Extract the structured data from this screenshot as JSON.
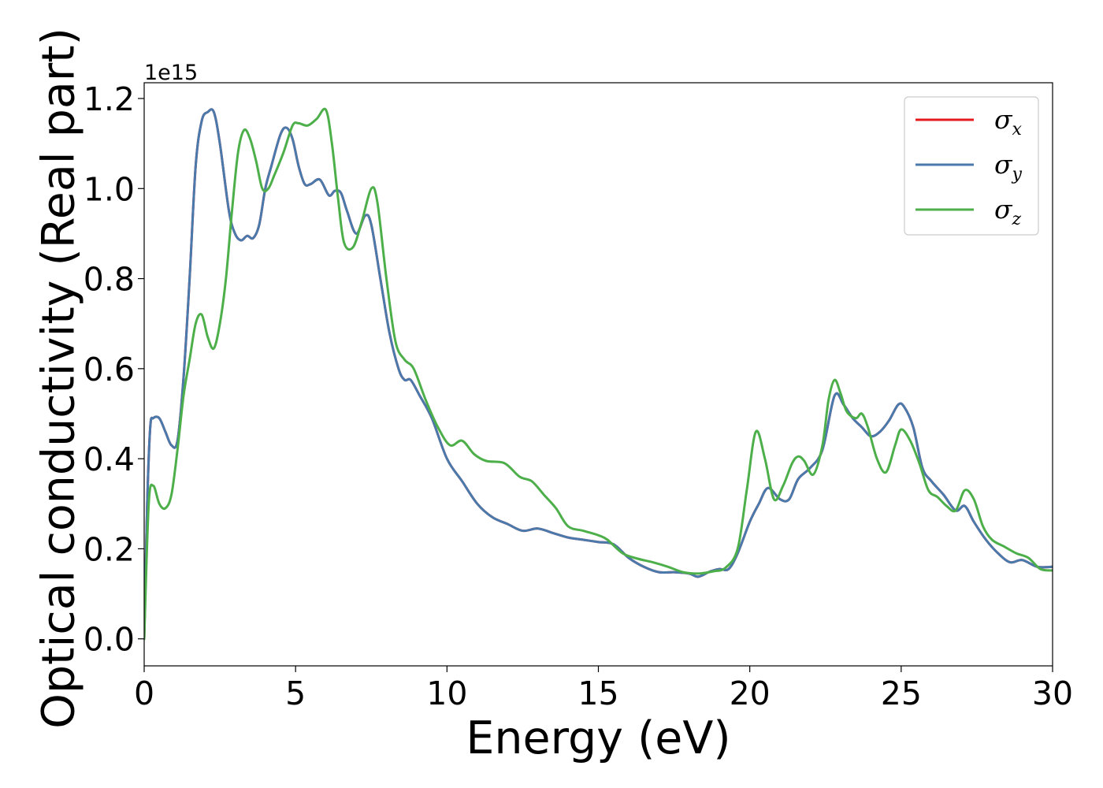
{
  "chart_data": {
    "type": "line",
    "xlabel": "Energy (eV)",
    "ylabel": "Optical conductivity (Real part)",
    "offset_text": "1e15",
    "xlim": [
      0,
      30
    ],
    "ylim": [
      -0.06,
      1.235
    ],
    "y_scale_factor": 1000000000000000.0,
    "grid": false,
    "legend_position": "top-right",
    "xticks": [
      0,
      5,
      10,
      15,
      20,
      25,
      30
    ],
    "xtick_labels": [
      "0",
      "5",
      "10",
      "15",
      "20",
      "25",
      "30"
    ],
    "yticks": [
      0.0,
      0.2,
      0.4,
      0.6,
      0.8,
      1.0,
      1.2
    ],
    "ytick_labels": [
      "0.0",
      "0.2",
      "0.4",
      "0.6",
      "0.8",
      "1.0",
      "1.2"
    ],
    "series": [
      {
        "name": "σx",
        "symbol": "σ",
        "subscript": "x",
        "color": "#e41a1c",
        "x": [
          0,
          0.1,
          0.2,
          0.3,
          0.5,
          0.7,
          0.9,
          1.1,
          1.3,
          1.5,
          1.7,
          1.9,
          2.1,
          2.3,
          2.5,
          2.8,
          3.0,
          3.2,
          3.4,
          3.6,
          3.8,
          4.0,
          4.2,
          4.5,
          4.7,
          4.9,
          5.1,
          5.3,
          5.5,
          5.8,
          6.1,
          6.3,
          6.5,
          6.7,
          7.0,
          7.3,
          7.5,
          7.8,
          8.1,
          8.4,
          8.6,
          8.8,
          9.1,
          9.5,
          10.0,
          10.5,
          11.0,
          11.5,
          12.0,
          12.5,
          13.0,
          13.5,
          14.0,
          14.5,
          15.0,
          15.5,
          16.0,
          16.5,
          17.0,
          17.5,
          18.0,
          18.3,
          18.7,
          19.0,
          19.3,
          19.6,
          20.0,
          20.3,
          20.6,
          21.0,
          21.3,
          21.6,
          22.0,
          22.4,
          22.8,
          23.1,
          23.4,
          23.7,
          24.0,
          24.3,
          24.6,
          24.9,
          25.1,
          25.4,
          25.7,
          26.0,
          26.4,
          26.8,
          27.1,
          27.4,
          27.8,
          28.2,
          28.6,
          29.0,
          29.5,
          30.0
        ],
        "values": [
          0.0,
          0.3,
          0.47,
          0.49,
          0.49,
          0.46,
          0.43,
          0.44,
          0.58,
          0.8,
          1.05,
          1.15,
          1.17,
          1.17,
          1.1,
          0.95,
          0.9,
          0.885,
          0.895,
          0.89,
          0.92,
          1.0,
          1.05,
          1.12,
          1.135,
          1.11,
          1.05,
          1.01,
          1.01,
          1.02,
          0.985,
          0.995,
          0.99,
          0.95,
          0.9,
          0.94,
          0.92,
          0.8,
          0.68,
          0.6,
          0.575,
          0.575,
          0.54,
          0.49,
          0.4,
          0.35,
          0.3,
          0.27,
          0.255,
          0.24,
          0.245,
          0.235,
          0.225,
          0.22,
          0.215,
          0.21,
          0.18,
          0.16,
          0.148,
          0.148,
          0.145,
          0.138,
          0.15,
          0.155,
          0.155,
          0.19,
          0.26,
          0.3,
          0.335,
          0.31,
          0.31,
          0.355,
          0.38,
          0.42,
          0.54,
          0.52,
          0.49,
          0.47,
          0.45,
          0.46,
          0.485,
          0.52,
          0.515,
          0.47,
          0.38,
          0.35,
          0.32,
          0.285,
          0.295,
          0.26,
          0.22,
          0.19,
          0.17,
          0.175,
          0.16,
          0.16
        ]
      },
      {
        "name": "σy",
        "symbol": "σ",
        "subscript": "y",
        "color": "#4a79ac",
        "x": [
          0,
          0.1,
          0.2,
          0.3,
          0.5,
          0.7,
          0.9,
          1.1,
          1.3,
          1.5,
          1.7,
          1.9,
          2.1,
          2.3,
          2.5,
          2.8,
          3.0,
          3.2,
          3.4,
          3.6,
          3.8,
          4.0,
          4.2,
          4.5,
          4.7,
          4.9,
          5.1,
          5.3,
          5.5,
          5.8,
          6.1,
          6.3,
          6.5,
          6.7,
          7.0,
          7.3,
          7.5,
          7.8,
          8.1,
          8.4,
          8.6,
          8.8,
          9.1,
          9.5,
          10.0,
          10.5,
          11.0,
          11.5,
          12.0,
          12.5,
          13.0,
          13.5,
          14.0,
          14.5,
          15.0,
          15.5,
          16.0,
          16.5,
          17.0,
          17.5,
          18.0,
          18.3,
          18.7,
          19.0,
          19.3,
          19.6,
          20.0,
          20.3,
          20.6,
          21.0,
          21.3,
          21.6,
          22.0,
          22.4,
          22.8,
          23.1,
          23.4,
          23.7,
          24.0,
          24.3,
          24.6,
          24.9,
          25.1,
          25.4,
          25.7,
          26.0,
          26.4,
          26.8,
          27.1,
          27.4,
          27.8,
          28.2,
          28.6,
          29.0,
          29.5,
          30.0
        ],
        "values": [
          0.0,
          0.3,
          0.47,
          0.49,
          0.49,
          0.46,
          0.43,
          0.44,
          0.58,
          0.8,
          1.05,
          1.15,
          1.17,
          1.17,
          1.1,
          0.95,
          0.9,
          0.885,
          0.895,
          0.89,
          0.92,
          1.0,
          1.05,
          1.12,
          1.135,
          1.11,
          1.05,
          1.01,
          1.01,
          1.02,
          0.985,
          0.995,
          0.99,
          0.95,
          0.9,
          0.94,
          0.92,
          0.8,
          0.68,
          0.6,
          0.575,
          0.575,
          0.54,
          0.49,
          0.4,
          0.35,
          0.3,
          0.27,
          0.255,
          0.24,
          0.245,
          0.235,
          0.225,
          0.22,
          0.215,
          0.21,
          0.18,
          0.16,
          0.148,
          0.148,
          0.145,
          0.138,
          0.15,
          0.155,
          0.155,
          0.19,
          0.26,
          0.3,
          0.335,
          0.31,
          0.31,
          0.355,
          0.38,
          0.42,
          0.54,
          0.52,
          0.49,
          0.47,
          0.45,
          0.46,
          0.485,
          0.52,
          0.515,
          0.47,
          0.38,
          0.35,
          0.32,
          0.285,
          0.295,
          0.26,
          0.22,
          0.19,
          0.17,
          0.175,
          0.16,
          0.16
        ]
      },
      {
        "name": "σz",
        "symbol": "σ",
        "subscript": "z",
        "color": "#4daf4a",
        "x": [
          0,
          0.15,
          0.3,
          0.5,
          0.7,
          0.9,
          1.1,
          1.3,
          1.5,
          1.7,
          1.9,
          2.1,
          2.3,
          2.5,
          2.7,
          2.9,
          3.1,
          3.3,
          3.5,
          3.7,
          3.9,
          4.1,
          4.3,
          4.6,
          4.9,
          5.1,
          5.4,
          5.7,
          6.0,
          6.2,
          6.4,
          6.6,
          6.9,
          7.2,
          7.5,
          7.7,
          8.0,
          8.3,
          8.6,
          8.9,
          9.3,
          9.7,
          10.1,
          10.5,
          10.9,
          11.3,
          11.9,
          12.4,
          12.8,
          13.2,
          13.6,
          14.0,
          14.5,
          15.0,
          15.3,
          15.8,
          16.3,
          16.8,
          17.3,
          17.8,
          18.3,
          18.8,
          19.2,
          19.6,
          19.9,
          20.2,
          20.5,
          20.8,
          21.1,
          21.4,
          21.6,
          21.8,
          22.1,
          22.4,
          22.6,
          22.8,
          23.0,
          23.2,
          23.5,
          23.7,
          23.9,
          24.2,
          24.5,
          24.8,
          25.0,
          25.3,
          25.6,
          25.9,
          26.2,
          26.5,
          26.8,
          27.1,
          27.4,
          27.7,
          28.0,
          28.4,
          28.8,
          29.2,
          29.6,
          30.0
        ],
        "values": [
          0.0,
          0.3,
          0.34,
          0.3,
          0.29,
          0.32,
          0.42,
          0.54,
          0.62,
          0.7,
          0.72,
          0.67,
          0.645,
          0.7,
          0.8,
          0.95,
          1.08,
          1.13,
          1.11,
          1.06,
          1.0,
          1.0,
          1.03,
          1.08,
          1.14,
          1.145,
          1.14,
          1.155,
          1.175,
          1.1,
          0.98,
          0.88,
          0.87,
          0.93,
          1.0,
          0.97,
          0.8,
          0.66,
          0.62,
          0.6,
          0.53,
          0.47,
          0.43,
          0.44,
          0.41,
          0.395,
          0.39,
          0.36,
          0.35,
          0.32,
          0.29,
          0.25,
          0.24,
          0.23,
          0.22,
          0.19,
          0.178,
          0.17,
          0.16,
          0.148,
          0.145,
          0.15,
          0.158,
          0.2,
          0.33,
          0.46,
          0.4,
          0.31,
          0.34,
          0.39,
          0.405,
          0.395,
          0.365,
          0.43,
          0.53,
          0.575,
          0.545,
          0.505,
          0.49,
          0.5,
          0.47,
          0.4,
          0.37,
          0.43,
          0.465,
          0.44,
          0.39,
          0.33,
          0.315,
          0.295,
          0.285,
          0.33,
          0.31,
          0.25,
          0.22,
          0.205,
          0.19,
          0.18,
          0.155,
          0.152
        ]
      }
    ]
  }
}
